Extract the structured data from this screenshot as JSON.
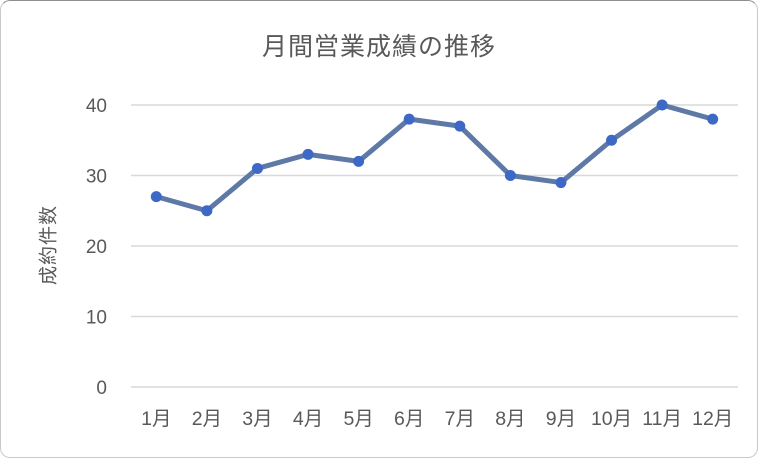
{
  "chart_data": {
    "type": "line",
    "title": "月間営業成績の推移",
    "ylabel": "成約件数",
    "xlabel": "",
    "categories": [
      "1月",
      "2月",
      "3月",
      "4月",
      "5月",
      "6月",
      "7月",
      "8月",
      "9月",
      "10月",
      "11月",
      "12月"
    ],
    "values": [
      27,
      25,
      31,
      33,
      32,
      38,
      37,
      30,
      29,
      35,
      40,
      38
    ],
    "y_ticks": [
      0,
      10,
      20,
      30,
      40
    ],
    "ylim": [
      0,
      40
    ],
    "grid": "horizontal",
    "legend": "none",
    "colors": {
      "line": "#5e79a6",
      "marker": "#3d68c6",
      "gridline": "#d9d9d9",
      "text": "#595959",
      "title": "#595959",
      "background": "#ffffff",
      "frame_border": "#c9c9c9"
    }
  }
}
